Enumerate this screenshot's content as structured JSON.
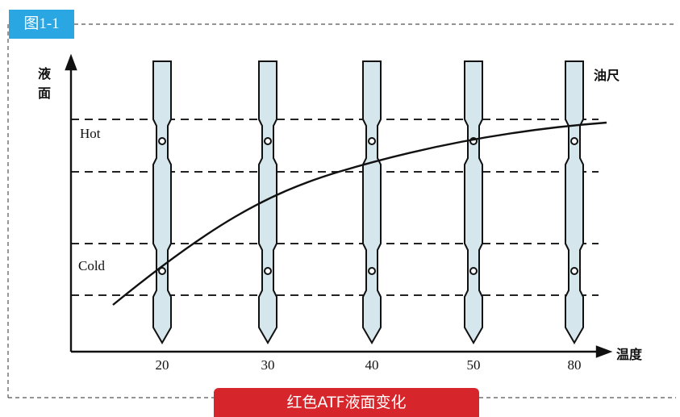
{
  "figure_tag": "图1-1",
  "caption": "红色ATF液面变化",
  "y_axis_label": "液\n面",
  "y_axis_label_top": "液",
  "y_axis_label_bottom": "面",
  "x_axis_label": "温度",
  "dipstick_label": "油尺",
  "band_labels": {
    "hot": "Hot",
    "cold": "Cold"
  },
  "x_ticks": [
    "20",
    "30",
    "40",
    "50",
    "80"
  ],
  "colors": {
    "tag": "#2aa7e3",
    "caption": "#d7262b",
    "stick_fill": "#d5e6ec",
    "line": "#111111"
  }
}
